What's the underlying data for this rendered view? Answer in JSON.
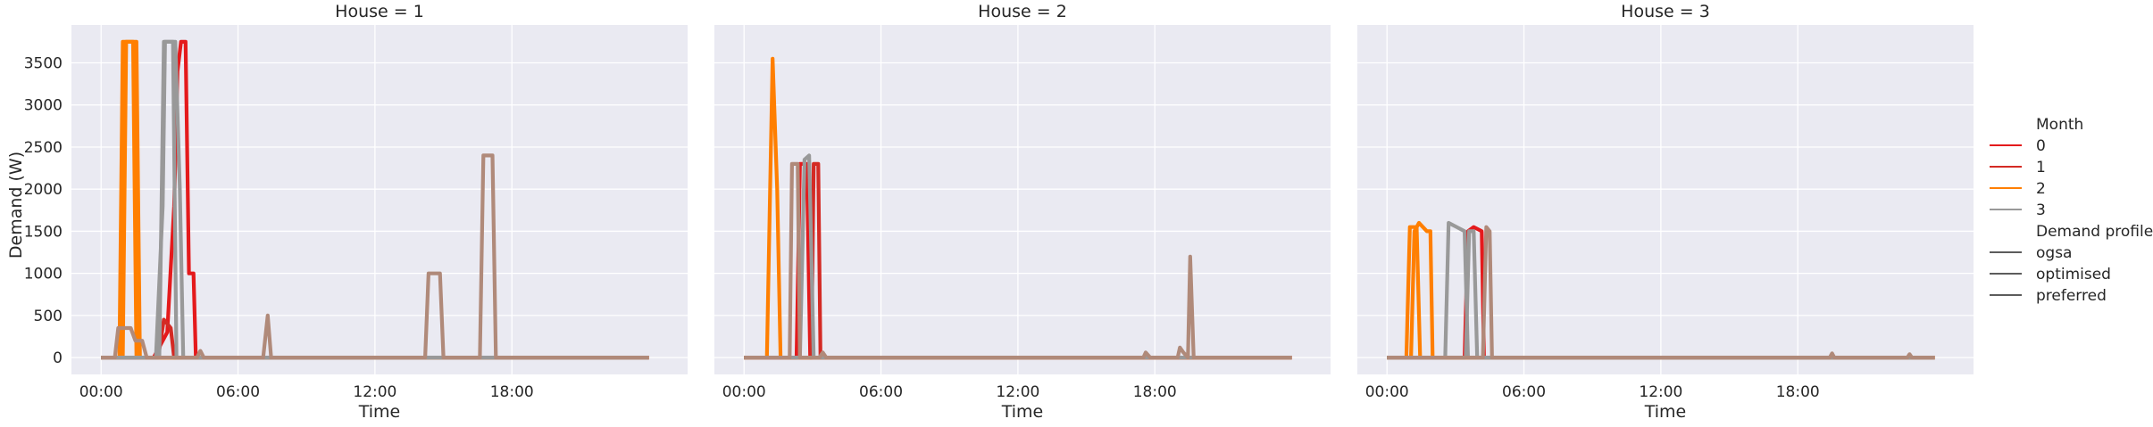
{
  "chart_data": {
    "type": "line",
    "ylabel": "Demand (W)",
    "xlabel": "Time",
    "x_unit": "hour of day",
    "xlim": [
      -1.3,
      25.7
    ],
    "ylim": [
      -200,
      3950
    ],
    "x_ticks": [
      {
        "value": 0,
        "label": "00:00"
      },
      {
        "value": 6,
        "label": "06:00"
      },
      {
        "value": 12,
        "label": "12:00"
      },
      {
        "value": 18,
        "label": "18:00"
      }
    ],
    "y_ticks": [
      0,
      500,
      1000,
      1500,
      2000,
      2500,
      3000,
      3500
    ],
    "grid": true,
    "legend_placement": "right",
    "legend": {
      "hue_title": "Month",
      "hue": [
        {
          "label": "0",
          "color": "#e41a1c"
        },
        {
          "label": "1",
          "color": "#d42a24"
        },
        {
          "label": "2",
          "color": "#ff7f00"
        },
        {
          "label": "3",
          "color": "#999999"
        }
      ],
      "style_title": "Demand profile",
      "styles": [
        {
          "label": "ogsa",
          "dash": "solid"
        },
        {
          "label": "optimised",
          "dash": "dashed"
        },
        {
          "label": "preferred",
          "dash": "dotted"
        }
      ]
    },
    "panels": [
      {
        "title": "House = 1",
        "series": [
          {
            "month": "0",
            "profile": "ogsa",
            "color": "#e41a1c",
            "points": [
              [
                0,
                0
              ],
              [
                2.3,
                0
              ],
              [
                2.5,
                100
              ],
              [
                2.9,
                300
              ],
              [
                3.2,
                1800
              ],
              [
                3.35,
                3400
              ],
              [
                3.5,
                3750
              ],
              [
                3.7,
                3750
              ],
              [
                3.85,
                1000
              ],
              [
                4.05,
                1000
              ],
              [
                4.15,
                0
              ],
              [
                24,
                0
              ]
            ]
          },
          {
            "month": "1",
            "profile": "optimised",
            "color": "#d42a24",
            "points": [
              [
                0,
                0
              ],
              [
                2.5,
                0
              ],
              [
                2.75,
                450
              ],
              [
                3.05,
                350
              ],
              [
                3.2,
                0
              ],
              [
                24,
                0
              ]
            ]
          },
          {
            "month": "2",
            "profile": "ogsa",
            "color": "#ff7f00",
            "points": [
              [
                0,
                0
              ],
              [
                0.8,
                0
              ],
              [
                0.95,
                3750
              ],
              [
                1.4,
                3750
              ],
              [
                1.55,
                0
              ],
              [
                24,
                0
              ]
            ]
          },
          {
            "month": "2",
            "profile": "optimised",
            "color": "#ff7f00",
            "points": [
              [
                0,
                0
              ],
              [
                0.95,
                0
              ],
              [
                1.1,
                3750
              ],
              [
                1.55,
                3750
              ],
              [
                1.7,
                0
              ],
              [
                24,
                0
              ]
            ]
          },
          {
            "month": "3",
            "profile": "ogsa",
            "color": "#999999",
            "points": [
              [
                0,
                0
              ],
              [
                2.4,
                0
              ],
              [
                2.7,
                1800
              ],
              [
                2.8,
                3750
              ],
              [
                3.25,
                3750
              ],
              [
                3.45,
                2000
              ],
              [
                3.6,
                0
              ],
              [
                24,
                0
              ]
            ]
          },
          {
            "month": "3",
            "profile": "optimised",
            "color": "#999999",
            "points": [
              [
                0,
                0
              ],
              [
                2.55,
                0
              ],
              [
                2.75,
                3750
              ],
              [
                3.15,
                3750
              ],
              [
                3.3,
                0
              ],
              [
                24,
                0
              ]
            ]
          },
          {
            "month": "3",
            "profile": "preferred",
            "color": "#b08a7a",
            "points": [
              [
                0,
                0
              ],
              [
                0.6,
                0
              ],
              [
                0.75,
                350
              ],
              [
                1.3,
                350
              ],
              [
                1.5,
                200
              ],
              [
                1.8,
                200
              ],
              [
                2.0,
                0
              ],
              [
                4.2,
                0
              ],
              [
                4.35,
                80
              ],
              [
                4.5,
                0
              ],
              [
                7.1,
                0
              ],
              [
                7.3,
                500
              ],
              [
                7.45,
                0
              ],
              [
                14.2,
                0
              ],
              [
                14.35,
                1000
              ],
              [
                14.85,
                1000
              ],
              [
                15.0,
                0
              ],
              [
                16.6,
                0
              ],
              [
                16.75,
                2400
              ],
              [
                17.15,
                2400
              ],
              [
                17.3,
                0
              ],
              [
                24,
                0
              ]
            ]
          }
        ]
      },
      {
        "title": "House = 2",
        "series": [
          {
            "month": "0",
            "profile": "ogsa",
            "color": "#e41a1c",
            "points": [
              [
                0,
                0
              ],
              [
                2.3,
                0
              ],
              [
                2.45,
                2300
              ],
              [
                2.75,
                2300
              ],
              [
                2.9,
                0
              ],
              [
                24,
                0
              ]
            ]
          },
          {
            "month": "1",
            "profile": "optimised",
            "color": "#d42a24",
            "points": [
              [
                0,
                0
              ],
              [
                2.95,
                0
              ],
              [
                3.05,
                2300
              ],
              [
                3.25,
                2300
              ],
              [
                3.35,
                0
              ],
              [
                24,
                0
              ]
            ]
          },
          {
            "month": "2",
            "profile": "optimised",
            "color": "#ff7f00",
            "points": [
              [
                0,
                0
              ],
              [
                1.0,
                0
              ],
              [
                1.25,
                3550
              ],
              [
                1.45,
                2000
              ],
              [
                1.6,
                0
              ],
              [
                24,
                0
              ]
            ]
          },
          {
            "month": "3",
            "profile": "ogsa",
            "color": "#999999",
            "points": [
              [
                0,
                0
              ],
              [
                2.45,
                0
              ],
              [
                2.65,
                2350
              ],
              [
                2.85,
                2400
              ],
              [
                3.05,
                0
              ],
              [
                24,
                0
              ]
            ]
          },
          {
            "month": "3",
            "profile": "preferred",
            "color": "#b08a7a",
            "points": [
              [
                0,
                0
              ],
              [
                2.0,
                0
              ],
              [
                2.1,
                2300
              ],
              [
                2.35,
                2300
              ],
              [
                2.45,
                0
              ],
              [
                3.3,
                0
              ],
              [
                3.45,
                60
              ],
              [
                3.6,
                0
              ],
              [
                17.5,
                0
              ],
              [
                17.6,
                60
              ],
              [
                17.8,
                0
              ],
              [
                19.0,
                0
              ],
              [
                19.1,
                120
              ],
              [
                19.25,
                60
              ],
              [
                19.45,
                0
              ],
              [
                19.55,
                1200
              ],
              [
                19.7,
                0
              ],
              [
                24,
                0
              ]
            ]
          }
        ]
      },
      {
        "title": "House = 3",
        "series": [
          {
            "month": "0",
            "profile": "ogsa",
            "color": "#e41a1c",
            "points": [
              [
                0,
                0
              ],
              [
                3.4,
                0
              ],
              [
                3.55,
                1500
              ],
              [
                3.8,
                1550
              ],
              [
                4.15,
                1500
              ],
              [
                4.25,
                0
              ],
              [
                24,
                0
              ]
            ]
          },
          {
            "month": "2",
            "profile": "ogsa",
            "color": "#ff7f00",
            "points": [
              [
                0,
                0
              ],
              [
                1.05,
                0
              ],
              [
                1.2,
                1500
              ],
              [
                1.4,
                1600
              ],
              [
                1.75,
                1500
              ],
              [
                1.9,
                1500
              ],
              [
                2.0,
                0
              ],
              [
                24,
                0
              ]
            ]
          },
          {
            "month": "2",
            "profile": "optimised",
            "color": "#ff7f00",
            "points": [
              [
                0,
                0
              ],
              [
                0.85,
                0
              ],
              [
                1.0,
                1550
              ],
              [
                1.3,
                1550
              ],
              [
                1.45,
                0
              ],
              [
                24,
                0
              ]
            ]
          },
          {
            "month": "3",
            "profile": "ogsa",
            "color": "#999999",
            "points": [
              [
                0,
                0
              ],
              [
                2.55,
                0
              ],
              [
                2.7,
                1600
              ],
              [
                3.05,
                1550
              ],
              [
                3.4,
                1500
              ],
              [
                3.55,
                0
              ],
              [
                24,
                0
              ]
            ]
          },
          {
            "month": "3",
            "profile": "optimised",
            "color": "#999999",
            "points": [
              [
                0,
                0
              ],
              [
                3.45,
                0
              ],
              [
                3.6,
                1500
              ],
              [
                3.8,
                1500
              ],
              [
                3.95,
                0
              ],
              [
                24,
                0
              ]
            ]
          },
          {
            "month": "3",
            "profile": "preferred",
            "color": "#b08a7a",
            "points": [
              [
                0,
                0
              ],
              [
                4.2,
                0
              ],
              [
                4.35,
                1550
              ],
              [
                4.5,
                1500
              ],
              [
                4.6,
                0
              ],
              [
                19.4,
                0
              ],
              [
                19.5,
                50
              ],
              [
                19.6,
                0
              ],
              [
                22.8,
                0
              ],
              [
                22.9,
                40
              ],
              [
                23.0,
                0
              ],
              [
                24,
                0
              ]
            ]
          }
        ]
      }
    ]
  }
}
